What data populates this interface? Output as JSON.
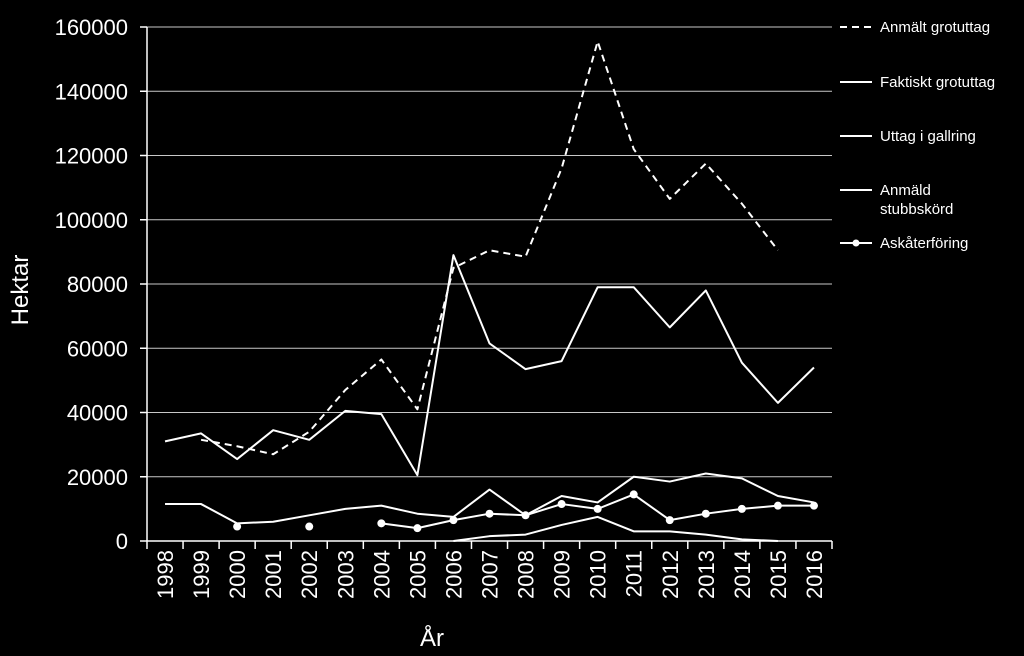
{
  "chart_data": {
    "type": "line",
    "title": "",
    "xlabel": "År",
    "ylabel": "Hektar",
    "ylim": [
      0,
      160000
    ],
    "yticks": [
      "0",
      "20000",
      "40000",
      "60000",
      "80000",
      "100000",
      "120000",
      "140000",
      "160000"
    ],
    "categories": [
      "1998",
      "1999",
      "2000",
      "2001",
      "2002",
      "2003",
      "2004",
      "2005",
      "2006",
      "2007",
      "2008",
      "2009",
      "2010",
      "2011",
      "2012",
      "2013",
      "2014",
      "2015",
      "2016"
    ],
    "grid": "horizontal",
    "legend_position": "right",
    "background_color": "#000000",
    "foreground_color": "#ffffff",
    "series": [
      {
        "name": "Anmält grotuttag",
        "style": "dashed",
        "values": [
          null,
          31500,
          29500,
          27000,
          34000,
          47000,
          56500,
          41000,
          85000,
          90500,
          88500,
          116000,
          155500,
          122000,
          106500,
          117500,
          105000,
          90500,
          null
        ]
      },
      {
        "name": "Faktiskt grotuttag",
        "style": "solid",
        "values": [
          31000,
          33500,
          25500,
          34500,
          31500,
          40500,
          39500,
          20500,
          89000,
          61500,
          53500,
          56000,
          79000,
          79000,
          66500,
          78000,
          55500,
          43000,
          54000
        ]
      },
      {
        "name": "Uttag i gallring",
        "style": "solid",
        "values": [
          11500,
          11500,
          5500,
          6000,
          8000,
          10000,
          11000,
          8500,
          7500,
          16000,
          8000,
          14000,
          12000,
          20000,
          18500,
          21000,
          19500,
          14000,
          12000
        ]
      },
      {
        "name": "Anmäld stubbskörd",
        "legend_lines": [
          "Anmäld",
          "stubbskörd"
        ],
        "style": "solid",
        "values": [
          null,
          null,
          null,
          null,
          null,
          null,
          null,
          null,
          0,
          1500,
          2000,
          5000,
          7500,
          3000,
          3000,
          2000,
          500,
          0,
          null
        ]
      },
      {
        "name": "Askåterföring",
        "style": "markers",
        "values": [
          null,
          null,
          4500,
          null,
          4500,
          null,
          5500,
          4000,
          6500,
          8500,
          8000,
          11500,
          10000,
          14500,
          6500,
          8500,
          10000,
          11000,
          11000
        ]
      }
    ]
  }
}
